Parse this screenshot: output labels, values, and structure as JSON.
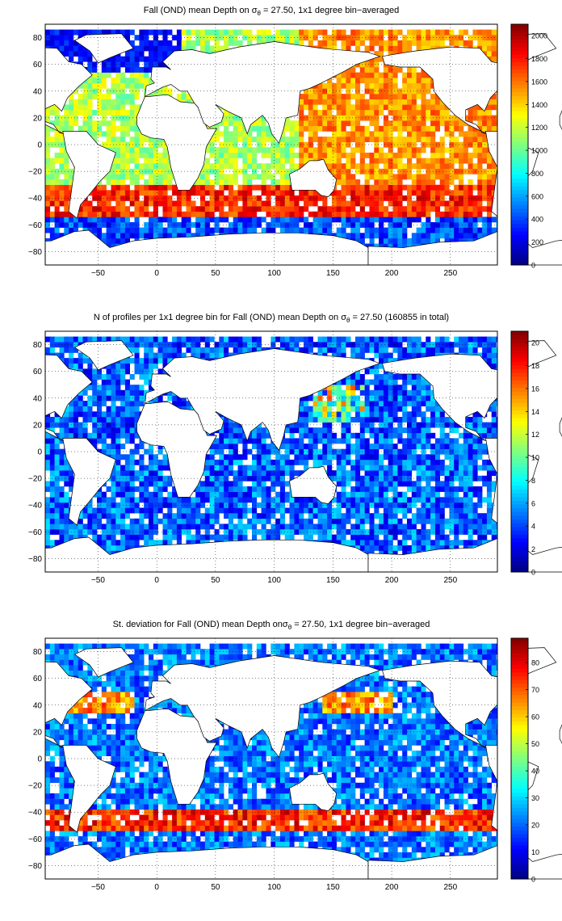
{
  "chart_data": [
    {
      "type": "heatmap",
      "title": {
        "pre": "Fall (OND) mean Depth on ",
        "sigma": "σ",
        "sub": "θ",
        "post": " = 27.50, 1x1 degree bin−averaged"
      },
      "xlim": [
        -95,
        290
      ],
      "ylim": [
        -90,
        90
      ],
      "xticks": [
        -50,
        0,
        50,
        100,
        150,
        200,
        250
      ],
      "yticks": [
        80,
        60,
        40,
        20,
        0,
        -20,
        -40,
        -60,
        -80
      ],
      "grid": true,
      "colormap": "jet",
      "colorbar": {
        "range": [
          0,
          2100
        ],
        "ticks": [
          0,
          200,
          400,
          600,
          800,
          1000,
          1200,
          1400,
          1600,
          1800,
          2000
        ]
      },
      "field": "depth"
    },
    {
      "type": "heatmap",
      "title": {
        "pre": "N of profiles per 1x1 degree bin for Fall (OND) mean Depth on ",
        "sigma": "σ",
        "sub": "θ",
        "post": " = 27.50 (160855 in total)"
      },
      "xlim": [
        -95,
        290
      ],
      "ylim": [
        -90,
        90
      ],
      "xticks": [
        -50,
        0,
        50,
        100,
        150,
        200,
        250
      ],
      "yticks": [
        80,
        60,
        40,
        20,
        0,
        -20,
        -40,
        -60,
        -80
      ],
      "grid": true,
      "colormap": "jet",
      "colorbar": {
        "range": [
          0,
          21
        ],
        "ticks": [
          0,
          2,
          4,
          6,
          8,
          10,
          12,
          14,
          16,
          18,
          20
        ]
      },
      "field": "count"
    },
    {
      "type": "heatmap",
      "title": {
        "pre": "St. deviation for Fall (OND) mean Depth on",
        "sigma": "σ",
        "sub": "θ",
        "post": " = 27.50, 1x1 degree bin−averaged"
      },
      "xlim": [
        -95,
        290
      ],
      "ylim": [
        -90,
        90
      ],
      "xticks": [
        -50,
        0,
        50,
        100,
        150,
        200,
        250
      ],
      "yticks": [
        80,
        60,
        40,
        20,
        0,
        -20,
        -40,
        -60,
        -80
      ],
      "grid": true,
      "colormap": "jet",
      "colorbar": {
        "range": [
          0,
          89
        ],
        "ticks": [
          0,
          10,
          20,
          30,
          40,
          50,
          60,
          70,
          80
        ]
      },
      "field": "std"
    }
  ]
}
